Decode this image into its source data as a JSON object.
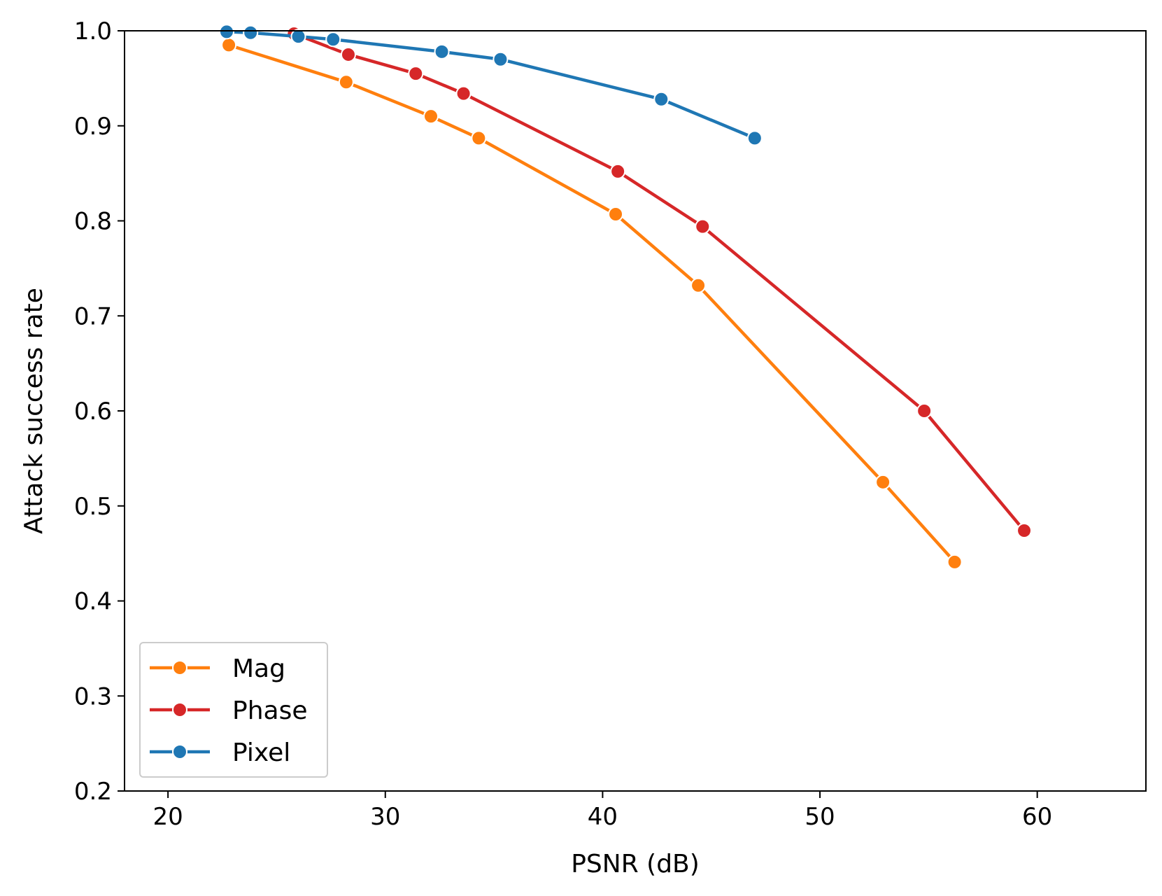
{
  "chart_data": {
    "type": "line",
    "title": "",
    "xlabel": "PSNR (dB)",
    "ylabel": "Attack success rate",
    "xlim": [
      18,
      65
    ],
    "ylim": [
      0.2,
      1.0
    ],
    "xticks": [
      20,
      30,
      40,
      50,
      60
    ],
    "yticks": [
      0.2,
      0.3,
      0.4,
      0.5,
      0.6,
      0.7,
      0.8,
      0.9,
      1.0
    ],
    "grid": false,
    "legend_position": "lower-left",
    "series": [
      {
        "name": "Mag",
        "color": "#ff7f0e",
        "x": [
          22.8,
          28.2,
          32.1,
          34.3,
          40.6,
          44.4,
          52.9,
          56.2
        ],
        "y": [
          0.985,
          0.946,
          0.91,
          0.887,
          0.807,
          0.732,
          0.525,
          0.441
        ]
      },
      {
        "name": "Phase",
        "color": "#d62728",
        "x": [
          25.8,
          28.3,
          31.4,
          33.6,
          40.7,
          44.6,
          54.8,
          59.4
        ],
        "y": [
          0.997,
          0.975,
          0.955,
          0.934,
          0.852,
          0.794,
          0.6,
          0.474
        ]
      },
      {
        "name": "Pixel",
        "color": "#1f77b4",
        "x": [
          22.7,
          23.8,
          26.0,
          27.6,
          32.6,
          35.3,
          42.7,
          47.0
        ],
        "y": [
          0.999,
          0.998,
          0.994,
          0.991,
          0.978,
          0.97,
          0.928,
          0.887
        ]
      }
    ]
  }
}
